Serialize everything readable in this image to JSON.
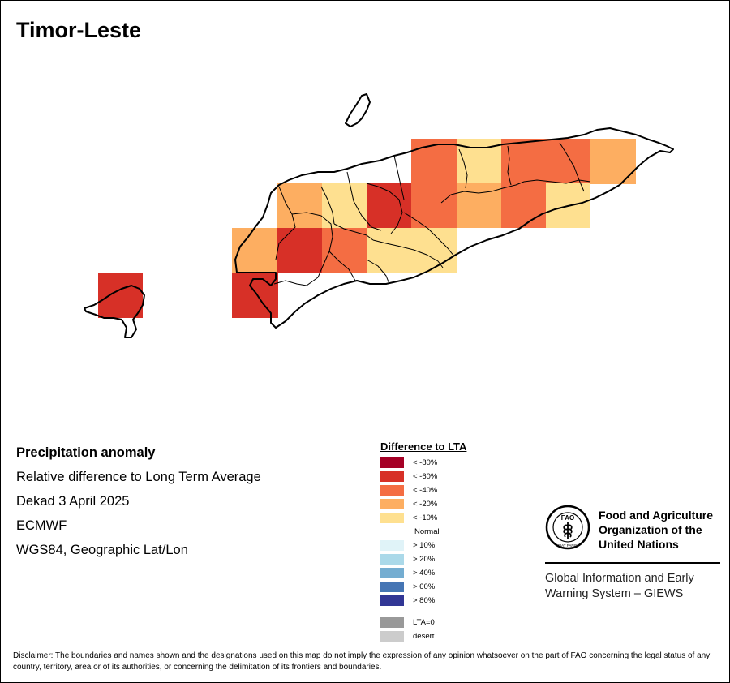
{
  "title": "Timor-Leste",
  "metadata": {
    "line1": "Precipitation anomaly",
    "line2": "Relative difference to Long Term Average",
    "line3": "Dekad 3 April 2025",
    "line4": "ECMWF",
    "line5": "WGS84, Geographic Lat/Lon"
  },
  "legend": {
    "title": "Difference to LTA",
    "items": [
      {
        "label": "< -80%",
        "color": "#a50026"
      },
      {
        "label": "< -60%",
        "color": "#d73027"
      },
      {
        "label": "< -40%",
        "color": "#f46d43"
      },
      {
        "label": "< -20%",
        "color": "#fdae61"
      },
      {
        "label": "< -10%",
        "color": "#fee090"
      },
      {
        "label": "Normal",
        "color": "#ffffff"
      },
      {
        "label": "> 10%",
        "color": "#e0f3f8"
      },
      {
        "label": "> 20%",
        "color": "#abd9e9"
      },
      {
        "label": "> 40%",
        "color": "#74add1"
      },
      {
        "label": "> 60%",
        "color": "#4575b4"
      },
      {
        "label": "> 80%",
        "color": "#313695"
      }
    ],
    "extra": [
      {
        "label": "LTA=0",
        "color": "#999999"
      },
      {
        "label": "desert",
        "color": "#cccccc"
      }
    ]
  },
  "org": {
    "name_line1": "Food and Agriculture",
    "name_line2": "Organization of the",
    "name_line3": "United Nations",
    "logo_text": "FAO",
    "logo_motto": "FIAT PANIS",
    "system_line1": "Global Information and Early",
    "system_line2": "Warning System – GIEWS"
  },
  "disclaimer": "Disclaimer: The boundaries and names shown and the designations used on this map do not imply the expression of any opinion whatsoever on the part of FAO concerning the legal status of any country, territory, area or of its authorities, or concerning the delimitation of its frontiers and boundaries."
}
